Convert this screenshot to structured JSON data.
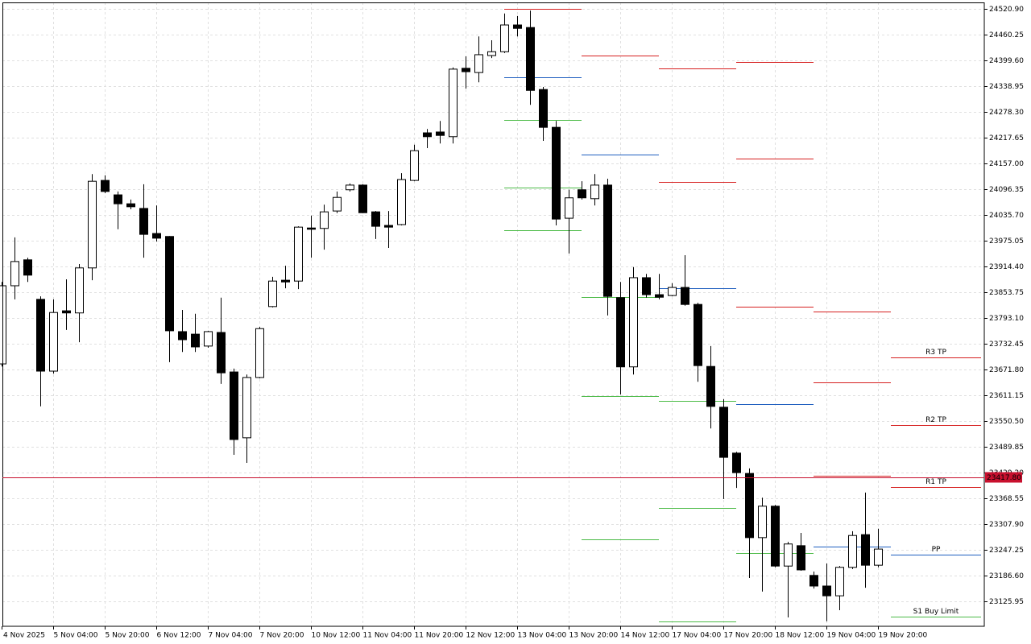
{
  "chart_data": {
    "type": "candlestick",
    "categories": [
      "4 Nov 2025",
      null,
      null,
      null,
      "5 Nov 04:00",
      null,
      null,
      null,
      "5 Nov 20:00",
      null,
      null,
      null,
      "6 Nov 12:00",
      null,
      null,
      null,
      "7 Nov 04:00",
      null,
      null,
      null,
      "7 Nov 20:00",
      null,
      null,
      null,
      "10 Nov 12:00",
      null,
      null,
      null,
      "11 Nov 04:00",
      null,
      null,
      null,
      "11 Nov 20:00",
      null,
      null,
      null,
      "12 Nov 12:00",
      null,
      null,
      null,
      "13 Nov 04:00",
      null,
      null,
      null,
      "13 Nov 20:00",
      null,
      null,
      null,
      "14 Nov 12:00",
      null,
      null,
      null,
      "17 Nov 04:00",
      null,
      null,
      null,
      "17 Nov 20:00",
      null,
      null,
      null,
      "18 Nov 12:00",
      null,
      null,
      null,
      "19 Nov 04:00",
      null,
      null,
      null,
      "19 Nov 20:00"
    ],
    "open": [
      23685,
      23869,
      23930,
      23837,
      23668,
      23810,
      23805,
      23911,
      24117,
      24083,
      24062,
      24051,
      23992,
      23985,
      23761,
      23755,
      23727,
      23759,
      23666,
      23511,
      23653,
      23820,
      23882,
      23880,
      24005,
      24004,
      24045,
      24095,
      24106,
      24043,
      24011,
      24013,
      24117,
      24229,
      24231,
      24220,
      24381,
      24371,
      24411,
      24420,
      24483,
      24477,
      24331,
      24242,
      24028,
      24095,
      24074,
      24106,
      23841,
      23678,
      23888,
      23848,
      23846,
      23865,
      23825,
      23679,
      23583,
      23475,
      23427,
      23276,
      23350,
      23209,
      23257,
      23187,
      23162,
      23139,
      23206,
      23283,
      23211
    ],
    "high": [
      23878,
      23983,
      23935,
      23844,
      23837,
      23884,
      23920,
      24132,
      24129,
      24091,
      24072,
      24108,
      24058,
      23986,
      23812,
      23803,
      23763,
      23841,
      23674,
      23660,
      23772,
      23890,
      23916,
      24009,
      24034,
      24060,
      24091,
      24110,
      24108,
      24045,
      24045,
      24134,
      24201,
      24238,
      24257,
      24383,
      24409,
      24456,
      24447,
      24510,
      24504,
      24517,
      24337,
      24257,
      24095,
      24115,
      24132,
      24121,
      23878,
      23913,
      23897,
      23897,
      23875,
      23941,
      23829,
      23727,
      23602,
      23478,
      23439,
      23370,
      23353,
      23266,
      23287,
      23196,
      23215,
      23209,
      23291,
      23382,
      23297
    ],
    "low": [
      23679,
      23837,
      23878,
      23585,
      23662,
      23765,
      23736,
      23882,
      24087,
      24002,
      24049,
      23935,
      23973,
      23689,
      23713,
      23713,
      23723,
      23638,
      23471,
      23452,
      23651,
      23818,
      23863,
      23861,
      23935,
      23954,
      24040,
      24091,
      24040,
      23979,
      23958,
      24011,
      24115,
      24193,
      24204,
      24204,
      24333,
      24348,
      24405,
      24417,
      24456,
      24295,
      24210,
      24011,
      23945,
      24072,
      24058,
      23799,
      23613,
      23660,
      23841,
      23837,
      23844,
      23822,
      23643,
      23533,
      23367,
      23393,
      23181,
      23149,
      23206,
      23088,
      23198,
      23156,
      23079,
      23105,
      23202,
      23158,
      23206
    ],
    "close": [
      23869,
      23926,
      23894,
      23668,
      23806,
      23805,
      23911,
      24115,
      24091,
      24062,
      24055,
      23990,
      23981,
      23763,
      23742,
      23725,
      23761,
      23664,
      23507,
      23653,
      23768,
      23880,
      23878,
      24007,
      24002,
      24043,
      24077,
      24106,
      24041,
      24009,
      24007,
      24119,
      24187,
      24220,
      24223,
      24379,
      24373,
      24413,
      24420,
      24483,
      24475,
      24329,
      24242,
      24026,
      24076,
      24076,
      24106,
      23844,
      23678,
      23888,
      23848,
      23842,
      23865,
      23825,
      23681,
      23585,
      23465,
      23429,
      23276,
      23350,
      23209,
      23261,
      23200,
      23162,
      23139,
      23206,
      23281,
      23211,
      23249
    ],
    "up_color": "#ffffff",
    "down_color": "#000000",
    "ylim": [
      23067.2,
      24536.1
    ],
    "yticks": [
      {
        "value": 24520.9,
        "label": "24520.90"
      },
      {
        "value": 24460.25,
        "label": "24460.25"
      },
      {
        "value": 24399.6,
        "label": "24399.60"
      },
      {
        "value": 24338.95,
        "label": "24338.95"
      },
      {
        "value": 24278.3,
        "label": "24278.30"
      },
      {
        "value": 24217.65,
        "label": "24217.65"
      },
      {
        "value": 24157,
        "label": "24157.00"
      },
      {
        "value": 24096.35,
        "label": "24096.35"
      },
      {
        "value": 24035.7,
        "label": "24035.70"
      },
      {
        "value": 23975.05,
        "label": "23975.05"
      },
      {
        "value": 23914.4,
        "label": "23914.40"
      },
      {
        "value": 23853.75,
        "label": "23853.75"
      },
      {
        "value": 23793.1,
        "label": "23793.10"
      },
      {
        "value": 23732.45,
        "label": "23732.45"
      },
      {
        "value": 23671.8,
        "label": "23671.80"
      },
      {
        "value": 23611.15,
        "label": "23611.15"
      },
      {
        "value": 23550.5,
        "label": "23550.50"
      },
      {
        "value": 23489.85,
        "label": "23489.85"
      },
      {
        "value": 23429.2,
        "label": "23429.20"
      },
      {
        "value": 23368.55,
        "label": "23368.55"
      },
      {
        "value": 23307.9,
        "label": "23307.90"
      },
      {
        "value": 23247.25,
        "label": "23247.25"
      },
      {
        "value": 23186.6,
        "label": "23186.60"
      },
      {
        "value": 23125.95,
        "label": "23125.95"
      }
    ],
    "grid": true,
    "current_price": {
      "value": 23417.8,
      "label": "23417.80",
      "color": "#c8102e"
    },
    "levels": [
      {
        "value": 24520.9,
        "start": 39,
        "end": 45,
        "color": "#d62020"
      },
      {
        "value": 24359.8,
        "start": 39,
        "end": 45,
        "color": "#1f5fbf"
      },
      {
        "value": 24259.3,
        "start": 39,
        "end": 45,
        "color": "#4cbb47"
      },
      {
        "value": 24100.2,
        "start": 39,
        "end": 45,
        "color": "#4cbb47"
      },
      {
        "value": 23999.7,
        "start": 39,
        "end": 45,
        "color": "#4cbb47"
      },
      {
        "value": 24410.9,
        "start": 45,
        "end": 51,
        "color": "#d62020"
      },
      {
        "value": 24177.9,
        "start": 45,
        "end": 51,
        "color": "#1f5fbf"
      },
      {
        "value": 23842.4,
        "start": 45,
        "end": 51,
        "color": "#4cbb47"
      },
      {
        "value": 23609.2,
        "start": 45,
        "end": 51,
        "color": "#4cbb47"
      },
      {
        "value": 23271.9,
        "start": 45,
        "end": 51,
        "color": "#4cbb47"
      },
      {
        "value": 24380.6,
        "start": 51,
        "end": 57,
        "color": "#d62020"
      },
      {
        "value": 24113.4,
        "start": 51,
        "end": 57,
        "color": "#d62020"
      },
      {
        "value": 23863.3,
        "start": 51,
        "end": 57,
        "color": "#1f5fbf"
      },
      {
        "value": 23597.8,
        "start": 51,
        "end": 57,
        "color": "#4cbb47"
      },
      {
        "value": 23345.8,
        "start": 51,
        "end": 57,
        "color": "#4cbb47"
      },
      {
        "value": 23079,
        "start": 51,
        "end": 57,
        "color": "#4cbb47"
      },
      {
        "value": 24395.8,
        "start": 57,
        "end": 63,
        "color": "#d62020"
      },
      {
        "value": 24168.4,
        "start": 57,
        "end": 63,
        "color": "#d62020"
      },
      {
        "value": 23819.7,
        "start": 57,
        "end": 63,
        "color": "#d62020"
      },
      {
        "value": 23590.3,
        "start": 57,
        "end": 63,
        "color": "#1f5fbf"
      },
      {
        "value": 23239.7,
        "start": 57,
        "end": 63,
        "color": "#4cbb47"
      },
      {
        "value": 23808.3,
        "start": 63,
        "end": 69,
        "color": "#d62020"
      },
      {
        "value": 23641.5,
        "start": 63,
        "end": 69,
        "color": "#d62020"
      },
      {
        "value": 23421.6,
        "start": 63,
        "end": 69,
        "color": "#d62020"
      },
      {
        "value": 23254.9,
        "start": 63,
        "end": 69,
        "color": "#1f5fbf"
      },
      {
        "value": 23700.2,
        "start": 69,
        "end": 76,
        "color": "#d62020",
        "label": "R3 TP"
      },
      {
        "value": 23541.0,
        "start": 69,
        "end": 76,
        "color": "#d62020",
        "label": "R2 TP"
      },
      {
        "value": 23395.1,
        "start": 69,
        "end": 76,
        "color": "#d62020",
        "label": "R1 TP"
      },
      {
        "value": 23235.9,
        "start": 69,
        "end": 76,
        "color": "#1f5fbf",
        "label": "PP"
      },
      {
        "value": 23089.9,
        "start": 69,
        "end": 76,
        "color": "#4cbb47",
        "label": "S1 Buy Limit"
      }
    ]
  }
}
